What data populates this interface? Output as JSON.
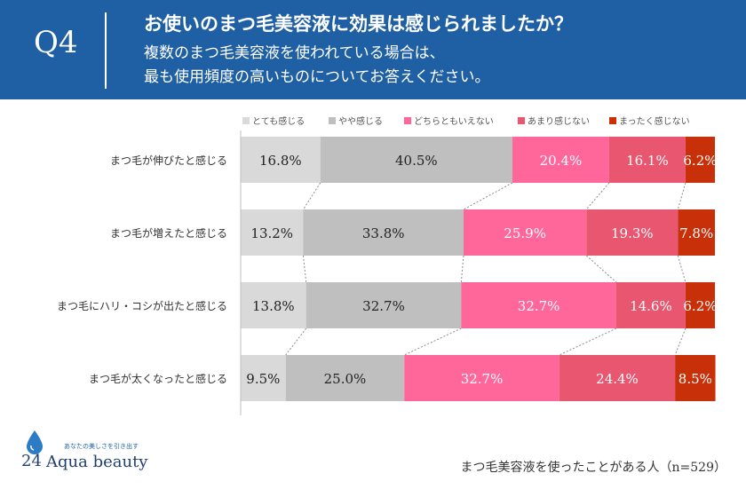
{
  "header": {
    "question": "Q4",
    "title": "お使いのまつ毛美容液に効果は感じられましたか？",
    "subtitle_1": "複数のまつ毛美容液を使われている場合は、",
    "subtitle_2": "最も使用頻度の高いものについてお答えください。"
  },
  "footer": {
    "note": "まつ毛美容液を使ったことがある人（n=529）"
  },
  "logo": {
    "tagline": "あなたの美しさを引き出す",
    "number": "24",
    "name": "Aqua beauty"
  },
  "colors": {
    "header_bg": "#1f5fa4",
    "series": [
      "#d9d9d9",
      "#bfbfbf",
      "#ff6699",
      "#e8566f",
      "#c8300a"
    ]
  },
  "chart_data": {
    "type": "bar",
    "orientation": "horizontal",
    "stacked": true,
    "percent": true,
    "categories": [
      "まつ毛が伸びたと感じる",
      "まつ毛が増えたと感じる",
      "まつ毛にハリ・コシが出たと感じる",
      "まつ毛が太くなったと感じる"
    ],
    "series": [
      {
        "name": "とても感じる",
        "color": "#d9d9d9",
        "values": [
          16.8,
          13.2,
          13.8,
          9.5
        ]
      },
      {
        "name": "やや感じる",
        "color": "#bfbfbf",
        "values": [
          40.5,
          33.8,
          32.7,
          25.0
        ]
      },
      {
        "name": "どちらともいえない",
        "color": "#ff6699",
        "values": [
          20.4,
          25.9,
          32.7,
          32.7
        ]
      },
      {
        "name": "あまり感じない",
        "color": "#e8566f",
        "values": [
          16.1,
          19.3,
          14.6,
          24.4
        ]
      },
      {
        "name": "まったく感じない",
        "color": "#c8300a",
        "values": [
          6.2,
          7.8,
          6.2,
          8.5
        ]
      }
    ],
    "data_label_format": "{v}%",
    "xlim": [
      0,
      100
    ],
    "legend_position": "top",
    "series_connector_lines": true
  }
}
